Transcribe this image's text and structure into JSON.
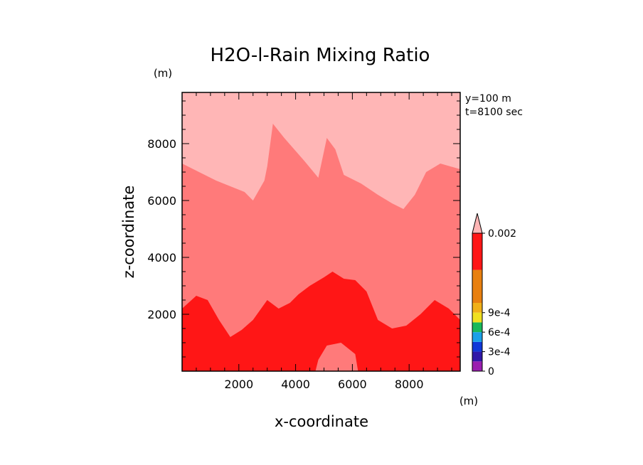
{
  "chart_data": {
    "type": "heatmap",
    "title": "H2O-l-Rain Mixing Ratio",
    "xlabel": "x-coordinate",
    "ylabel": "z-coordinate",
    "x_unit": "(m)",
    "y_unit": "(m)",
    "xlim": [
      0,
      9800
    ],
    "ylim": [
      0,
      9800
    ],
    "xticks": [
      2000,
      4000,
      6000,
      8000
    ],
    "yticks": [
      2000,
      4000,
      6000,
      8000
    ],
    "xtick_labels": [
      "2000",
      "4000",
      "6000",
      "8000"
    ],
    "ytick_labels": [
      "2000",
      "4000",
      "6000",
      "8000"
    ],
    "annotations": [
      "y=100 m",
      "t=8100 sec"
    ],
    "colorbar": {
      "labels": [
        "0",
        "3e-4",
        "6e-4",
        "9e-4",
        "0.002"
      ],
      "label_values": [
        0,
        0.0003,
        0.0006,
        0.0009,
        0.002
      ],
      "levels": [
        0,
        0.00015,
        0.0003,
        0.00045,
        0.0006,
        0.00075,
        0.0009,
        0.00105,
        0.0015,
        0.002
      ],
      "colors": [
        "#9a1fb0",
        "#3018a8",
        "#1038d8",
        "#1aa0e8",
        "#18b85a",
        "#f0e020",
        "#f0b018",
        "#e88010",
        "#ff1616",
        "#ff7a7a",
        "#ffb6b6"
      ],
      "extend": "max"
    },
    "regions": [
      {
        "name": "low-rain-band",
        "fill": "#ff1616",
        "boundary_top": [
          [
            0,
            2200
          ],
          [
            500,
            2650
          ],
          [
            900,
            2500
          ],
          [
            1300,
            1800
          ],
          [
            1700,
            1200
          ],
          [
            2100,
            1450
          ],
          [
            2500,
            1800
          ],
          [
            3000,
            2500
          ],
          [
            3400,
            2200
          ],
          [
            3800,
            2400
          ],
          [
            4100,
            2700
          ],
          [
            4500,
            3000
          ],
          [
            5000,
            3300
          ],
          [
            5300,
            3500
          ],
          [
            5700,
            3250
          ],
          [
            6100,
            3200
          ],
          [
            6500,
            2800
          ],
          [
            6900,
            1800
          ],
          [
            7400,
            1500
          ],
          [
            7900,
            1600
          ],
          [
            8400,
            2000
          ],
          [
            8900,
            2500
          ],
          [
            9400,
            2200
          ],
          [
            9800,
            1800
          ]
        ]
      },
      {
        "name": "mid-rain-band",
        "fill": "#ff7a7a",
        "boundary_top": [
          [
            0,
            7300
          ],
          [
            600,
            7000
          ],
          [
            1200,
            6700
          ],
          [
            1700,
            6500
          ],
          [
            2200,
            6300
          ],
          [
            2500,
            6000
          ],
          [
            2900,
            6700
          ],
          [
            3000,
            7200
          ],
          [
            3200,
            8700
          ],
          [
            3600,
            8200
          ],
          [
            4300,
            7400
          ],
          [
            4800,
            6800
          ],
          [
            5100,
            8200
          ],
          [
            5400,
            7800
          ],
          [
            5700,
            6900
          ],
          [
            6300,
            6600
          ],
          [
            6900,
            6200
          ],
          [
            7400,
            5900
          ],
          [
            7800,
            5700
          ],
          [
            8200,
            6200
          ],
          [
            8600,
            7000
          ],
          [
            9100,
            7300
          ],
          [
            9800,
            7100
          ]
        ]
      },
      {
        "name": "upper-band",
        "fill": "#ffb6b6"
      },
      {
        "name": "pocket",
        "fill": "#ff7a7a",
        "outline": [
          [
            4800,
            400
          ],
          [
            5100,
            900
          ],
          [
            5600,
            1000
          ],
          [
            6100,
            600
          ],
          [
            6200,
            0
          ],
          [
            4700,
            0
          ]
        ]
      }
    ]
  }
}
